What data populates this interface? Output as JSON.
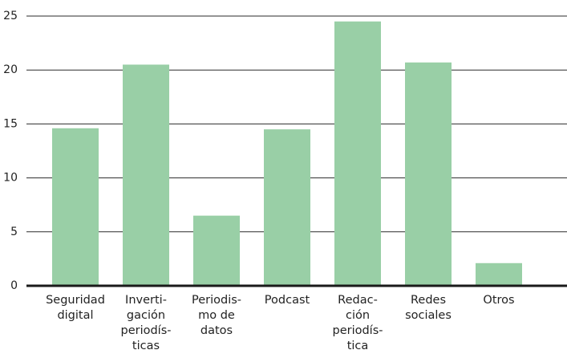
{
  "chart_data": {
    "type": "bar",
    "categories": [
      [
        "Seguridad",
        "digital"
      ],
      [
        "Inverti-",
        "gación",
        "periodís-",
        "ticas"
      ],
      [
        "Periodis-",
        "mo de",
        "datos"
      ],
      [
        "Podcast"
      ],
      [
        "Redac-",
        "ción",
        "periodís-",
        "tica"
      ],
      [
        "Redes",
        "sociales"
      ],
      [
        "Otros"
      ]
    ],
    "values": [
      14.6,
      20.5,
      6.5,
      14.5,
      24.5,
      20.7,
      2.1
    ],
    "ylim": [
      0,
      25
    ],
    "yticks": [
      0,
      5,
      10,
      15,
      20,
      25
    ],
    "grid": true,
    "colors": {
      "bar": "#99cfa6",
      "grid": "#2b2b2b",
      "axis": "#1a1a1a"
    }
  }
}
